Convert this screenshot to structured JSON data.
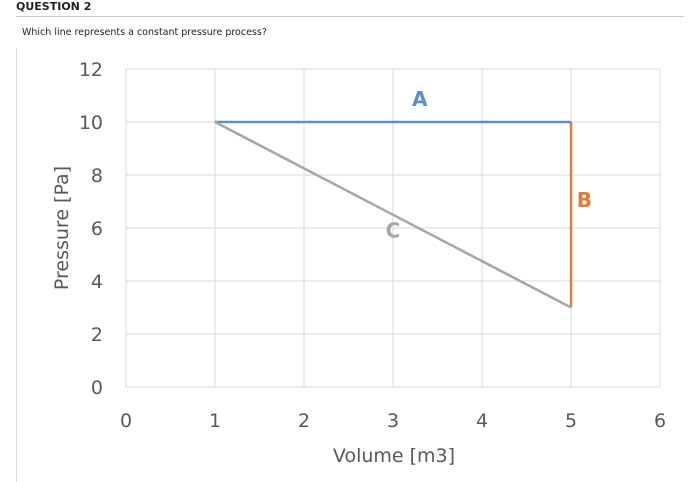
{
  "question": {
    "header": "QUESTION 2",
    "prompt": "Which line represents a constant pressure process?"
  },
  "chart_data": {
    "type": "line",
    "title": "",
    "xlabel": "Volume [m3]",
    "ylabel": "Pressure [Pa]",
    "xlim": [
      0,
      6
    ],
    "ylim": [
      0,
      12
    ],
    "x_ticks": [
      0,
      1,
      2,
      3,
      4,
      5,
      6
    ],
    "y_ticks": [
      0,
      2,
      4,
      6,
      8,
      10,
      12
    ],
    "grid": true,
    "series": [
      {
        "name": "A",
        "color": "#5b8fd1",
        "points": [
          [
            1,
            10
          ],
          [
            5,
            10
          ]
        ]
      },
      {
        "name": "B",
        "color": "#e07b39",
        "points": [
          [
            5,
            10
          ],
          [
            5,
            3
          ]
        ]
      },
      {
        "name": "C",
        "color": "#a6a6a6",
        "points": [
          [
            1,
            10
          ],
          [
            5,
            3
          ]
        ]
      }
    ]
  }
}
